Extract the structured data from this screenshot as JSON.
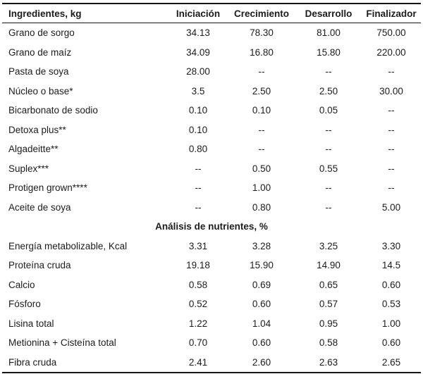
{
  "table": {
    "columns": [
      "Ingredientes, kg",
      "Iniciación",
      "Crecimiento",
      "Desarrollo",
      "Finalizador"
    ],
    "ingredient_rows": [
      [
        "Grano de sorgo",
        "34.13",
        "78.30",
        "81.00",
        "750.00"
      ],
      [
        "Grano de maíz",
        "34.09",
        "16.80",
        "15.80",
        "220.00"
      ],
      [
        "Pasta de soya",
        "28.00",
        "--",
        "--",
        "--"
      ],
      [
        "Núcleo o base*",
        "3.5",
        "2.50",
        "2.50",
        "30.00"
      ],
      [
        "Bicarbonato de sodio",
        "0.10",
        "0.10",
        "0.05",
        "--"
      ],
      [
        "Detoxa plus**",
        "0.10",
        "--",
        "--",
        "--"
      ],
      [
        "Algadeitte**",
        "0.80",
        "--",
        "--",
        "--"
      ],
      [
        "Suplex***",
        "--",
        "0.50",
        "0.55",
        "--"
      ],
      [
        "Protigen grown****",
        "--",
        "1.00",
        "--",
        "--"
      ],
      [
        "Aceite de soya",
        "--",
        "0.80",
        "--",
        "5.00"
      ]
    ],
    "section_header": "Análisis de nutrientes, %",
    "nutrient_rows": [
      [
        "Energía metabolizable, Kcal",
        "3.31",
        "3.28",
        "3.25",
        "3.30"
      ],
      [
        "Proteína cruda",
        "19.18",
        "15.90",
        "14.90",
        "14.5"
      ],
      [
        "Calcio",
        "0.58",
        "0.69",
        "0.65",
        "0.60"
      ],
      [
        "Fósforo",
        "0.52",
        "0.60",
        "0.57",
        "0.53"
      ],
      [
        "Lisina total",
        "1.22",
        "1.04",
        "0.95",
        "1.00"
      ],
      [
        "Metionina + Cisteína total",
        "0.70",
        "0.60",
        "0.58",
        "0.60"
      ],
      [
        "Fibra cruda",
        "2.41",
        "2.60",
        "2.63",
        "2.65"
      ]
    ],
    "colors": {
      "text": "#1c1c1c",
      "rule": "#151515",
      "background": "#ffffff"
    }
  }
}
